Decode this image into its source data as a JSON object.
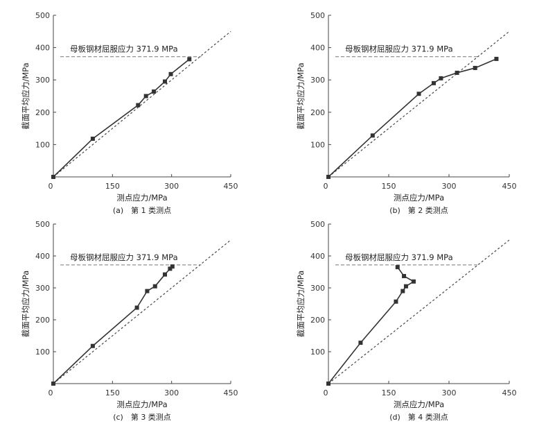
{
  "chart_data": [
    {
      "type": "line",
      "caption": "(a)　第 1 类测点",
      "xlabel": "测点应力/MPa",
      "ylabel": "截面平均应力/MPa",
      "xlim": [
        0,
        450
      ],
      "ylim": [
        0,
        500
      ],
      "xticks": [
        "0",
        "150",
        "300",
        "450"
      ],
      "yticks": [
        "100",
        "200",
        "300",
        "400",
        "500"
      ],
      "annotation": "母板钢材屈服应力 371.9 MPa",
      "yield_stress": 371.9,
      "reference_line": [
        [
          0,
          0
        ],
        [
          450,
          450
        ]
      ],
      "series": [
        {
          "x": [
            0,
            100,
            215,
            235,
            255,
            283,
            298,
            345
          ],
          "y": [
            0,
            118,
            222,
            250,
            264,
            295,
            318,
            364
          ]
        }
      ]
    },
    {
      "type": "line",
      "caption": "(b)　第 2 类测点",
      "xlabel": "测点应力/MPa",
      "ylabel": "截面平均应力/MPa",
      "xlim": [
        0,
        450
      ],
      "ylim": [
        0,
        500
      ],
      "xticks": [
        "0",
        "150",
        "300",
        "450"
      ],
      "yticks": [
        "100",
        "200",
        "300",
        "400",
        "500"
      ],
      "annotation": "母板钢材屈服应力 371.9 MPa",
      "yield_stress": 371.9,
      "reference_line": [
        [
          0,
          0
        ],
        [
          450,
          450
        ]
      ],
      "series": [
        {
          "x": [
            0,
            110,
            225,
            262,
            280,
            320,
            365,
            418
          ],
          "y": [
            0,
            128,
            257,
            290,
            305,
            322,
            337,
            365
          ]
        }
      ]
    },
    {
      "type": "line",
      "caption": "(c)　第 3 类测点",
      "xlabel": "测点应力/MPa",
      "ylabel": "截面平均应力/MPa",
      "xlim": [
        0,
        450
      ],
      "ylim": [
        0,
        500
      ],
      "xticks": [
        "0",
        "150",
        "300",
        "450"
      ],
      "yticks": [
        "100",
        "200",
        "300",
        "400",
        "500"
      ],
      "annotation": "母板钢材屈服应力 371.9 MPa",
      "yield_stress": 371.9,
      "reference_line": [
        [
          0,
          0
        ],
        [
          450,
          450
        ]
      ],
      "series": [
        {
          "x": [
            0,
            100,
            212,
            238,
            258,
            283,
            296,
            302
          ],
          "y": [
            0,
            118,
            238,
            290,
            305,
            342,
            360,
            367
          ]
        }
      ]
    },
    {
      "type": "line",
      "caption": "(d)　第 4 类测点",
      "xlabel": "测点应力/MPa",
      "ylabel": "截面平均应力/MPa",
      "xlim": [
        0,
        450
      ],
      "ylim": [
        0,
        500
      ],
      "xticks": [
        "0",
        "150",
        "300",
        "450"
      ],
      "yticks": [
        "100",
        "200",
        "300",
        "400",
        "500"
      ],
      "annotation": "母板钢材屈服应力 371.9 MPa",
      "yield_stress": 371.9,
      "reference_line": [
        [
          0,
          0
        ],
        [
          450,
          450
        ]
      ],
      "series": [
        {
          "x": [
            0,
            80,
            168,
            185,
            193,
            212,
            188,
            172
          ],
          "y": [
            0,
            128,
            257,
            290,
            305,
            320,
            337,
            365
          ]
        }
      ]
    }
  ]
}
